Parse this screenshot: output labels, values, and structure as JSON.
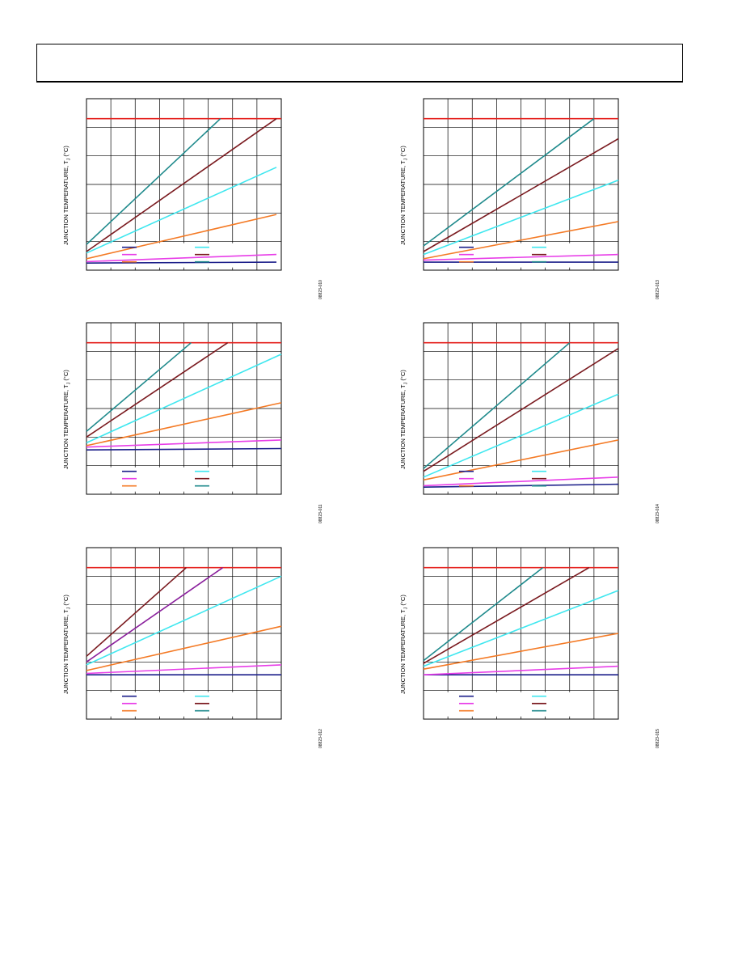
{
  "header": {},
  "y_label_prefix": "JUNCTION TEMPERATURE, T",
  "y_label_sub": "J",
  "y_label_suffix": " (°C)",
  "colors": {
    "navy": "#1c1f8a",
    "magenta": "#e83ee8",
    "orange": "#f47a25",
    "cyan": "#3fe7ef",
    "maroon": "#7a1a1f",
    "teal": "#1f8a8c",
    "purple": "#8a1f9c",
    "red": "#e5211e"
  },
  "chart_data": [
    {
      "type": "line",
      "code": "08823-010",
      "xlim": [
        0,
        8
      ],
      "ylim": [
        0,
        6
      ],
      "legend_colors": [
        "navy",
        "magenta",
        "orange",
        "cyan",
        "maroon",
        "teal"
      ],
      "limit": 5.3,
      "series": [
        {
          "color": "navy",
          "x": [
            0,
            7.8
          ],
          "y": [
            0.25,
            0.28
          ]
        },
        {
          "color": "magenta",
          "x": [
            0,
            7.8
          ],
          "y": [
            0.3,
            0.55
          ]
        },
        {
          "color": "orange",
          "x": [
            0,
            7.8
          ],
          "y": [
            0.4,
            1.95
          ]
        },
        {
          "color": "cyan",
          "x": [
            0,
            7.8
          ],
          "y": [
            0.6,
            3.6
          ]
        },
        {
          "color": "maroon",
          "x": [
            0,
            7.8
          ],
          "y": [
            0.65,
            5.3
          ]
        },
        {
          "color": "teal",
          "x": [
            0,
            5.5
          ],
          "y": [
            0.9,
            5.3
          ]
        }
      ]
    },
    {
      "type": "line",
      "code": "08823-013",
      "xlim": [
        0,
        8
      ],
      "ylim": [
        0,
        6
      ],
      "legend_colors": [
        "navy",
        "magenta",
        "orange",
        "cyan",
        "maroon",
        "teal"
      ],
      "limit": 5.3,
      "series": [
        {
          "color": "navy",
          "x": [
            0,
            8
          ],
          "y": [
            0.28,
            0.28
          ]
        },
        {
          "color": "magenta",
          "x": [
            0,
            8
          ],
          "y": [
            0.35,
            0.55
          ]
        },
        {
          "color": "orange",
          "x": [
            0,
            8
          ],
          "y": [
            0.4,
            1.7
          ]
        },
        {
          "color": "cyan",
          "x": [
            0,
            8
          ],
          "y": [
            0.55,
            3.15
          ]
        },
        {
          "color": "maroon",
          "x": [
            0,
            8
          ],
          "y": [
            0.65,
            4.6
          ]
        },
        {
          "color": "teal",
          "x": [
            0,
            7
          ],
          "y": [
            0.85,
            5.3
          ]
        }
      ]
    },
    {
      "type": "line",
      "code": "08823-011",
      "xlim": [
        0,
        8
      ],
      "ylim": [
        0,
        6
      ],
      "legend_colors": [
        "navy",
        "magenta",
        "orange",
        "cyan",
        "maroon",
        "teal"
      ],
      "limit": 5.3,
      "series": [
        {
          "color": "navy",
          "x": [
            0,
            8
          ],
          "y": [
            1.55,
            1.6
          ]
        },
        {
          "color": "magenta",
          "x": [
            0,
            8
          ],
          "y": [
            1.65,
            1.9
          ]
        },
        {
          "color": "orange",
          "x": [
            0,
            8
          ],
          "y": [
            1.7,
            3.2
          ]
        },
        {
          "color": "cyan",
          "x": [
            0,
            8
          ],
          "y": [
            1.8,
            4.9
          ]
        },
        {
          "color": "maroon",
          "x": [
            0,
            5.8
          ],
          "y": [
            2.0,
            5.3
          ]
        },
        {
          "color": "teal",
          "x": [
            0,
            4.3
          ],
          "y": [
            2.2,
            5.3
          ]
        }
      ]
    },
    {
      "type": "line",
      "code": "08823-014",
      "xlim": [
        0,
        8
      ],
      "ylim": [
        0,
        6
      ],
      "legend_colors": [
        "navy",
        "magenta",
        "orange",
        "cyan",
        "maroon",
        "teal"
      ],
      "limit": 5.3,
      "series": [
        {
          "color": "navy",
          "x": [
            0,
            8
          ],
          "y": [
            0.25,
            0.35
          ]
        },
        {
          "color": "magenta",
          "x": [
            0,
            8
          ],
          "y": [
            0.3,
            0.6
          ]
        },
        {
          "color": "orange",
          "x": [
            0,
            8
          ],
          "y": [
            0.5,
            1.9
          ]
        },
        {
          "color": "cyan",
          "x": [
            0,
            8
          ],
          "y": [
            0.6,
            3.5
          ]
        },
        {
          "color": "maroon",
          "x": [
            0,
            8
          ],
          "y": [
            0.8,
            5.1
          ]
        },
        {
          "color": "teal",
          "x": [
            0,
            6
          ],
          "y": [
            0.9,
            5.3
          ]
        }
      ]
    },
    {
      "type": "line",
      "code": "08823-012",
      "xlim": [
        0,
        8
      ],
      "ylim": [
        0,
        6
      ],
      "legend_colors": [
        "navy",
        "magenta",
        "orange",
        "cyan",
        "maroon",
        "teal"
      ],
      "limit": 5.3,
      "series": [
        {
          "color": "navy",
          "x": [
            0,
            8
          ],
          "y": [
            1.55,
            1.55
          ]
        },
        {
          "color": "magenta",
          "x": [
            0,
            8
          ],
          "y": [
            1.6,
            1.9
          ]
        },
        {
          "color": "orange",
          "x": [
            0,
            8
          ],
          "y": [
            1.7,
            3.25
          ]
        },
        {
          "color": "cyan",
          "x": [
            0,
            8
          ],
          "y": [
            1.9,
            5.0
          ]
        },
        {
          "color": "purple",
          "x": [
            0,
            5.6
          ],
          "y": [
            2.0,
            5.3
          ]
        },
        {
          "color": "maroon",
          "x": [
            0,
            4.1
          ],
          "y": [
            2.2,
            5.3
          ]
        }
      ]
    },
    {
      "type": "line",
      "code": "08823-015",
      "xlim": [
        0,
        8
      ],
      "ylim": [
        0,
        6
      ],
      "legend_colors": [
        "navy",
        "magenta",
        "orange",
        "cyan",
        "maroon",
        "teal"
      ],
      "limit": 5.3,
      "series": [
        {
          "color": "navy",
          "x": [
            0,
            8
          ],
          "y": [
            1.55,
            1.55
          ]
        },
        {
          "color": "magenta",
          "x": [
            0,
            8
          ],
          "y": [
            1.55,
            1.85
          ]
        },
        {
          "color": "orange",
          "x": [
            0,
            8
          ],
          "y": [
            1.75,
            3.0
          ]
        },
        {
          "color": "cyan",
          "x": [
            0,
            8
          ],
          "y": [
            1.85,
            4.5
          ]
        },
        {
          "color": "maroon",
          "x": [
            0,
            6.8
          ],
          "y": [
            1.95,
            5.3
          ]
        },
        {
          "color": "teal",
          "x": [
            0,
            4.9
          ],
          "y": [
            2.05,
            5.3
          ]
        }
      ]
    }
  ]
}
